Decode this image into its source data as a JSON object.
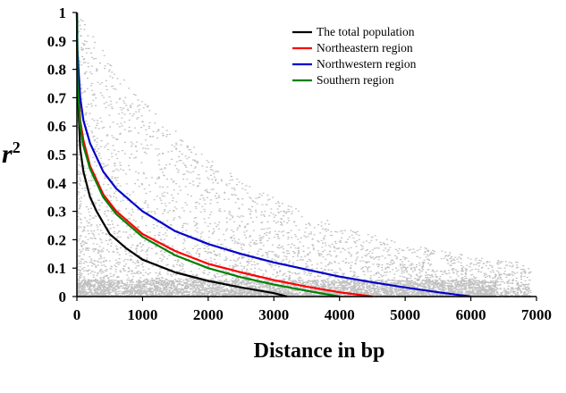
{
  "chart_data": {
    "type": "scatter",
    "title": "",
    "xlabel": "Distance in bp",
    "ylabel": "r",
    "ylabel_superscript": "2",
    "xlim": [
      0,
      7000
    ],
    "ylim": [
      0,
      1
    ],
    "x_ticks": [
      "0",
      "1000",
      "2000",
      "3000",
      "4000",
      "5000",
      "6000",
      "7000"
    ],
    "x_tick_values": [
      0,
      1000,
      2000,
      3000,
      4000,
      5000,
      6000,
      7000
    ],
    "y_ticks": [
      "0",
      "0.1",
      "0.2",
      "0.3",
      "0.4",
      "0.5",
      "0.6",
      "0.7",
      "0.8",
      "0.9",
      "1"
    ],
    "y_tick_values": [
      0,
      0.1,
      0.2,
      0.3,
      0.4,
      0.5,
      0.6,
      0.7,
      0.8,
      0.9,
      1.0
    ],
    "grid": false,
    "legend_position": "top-right",
    "scatter_color": "#c0c0c0",
    "series": [
      {
        "name": "The total population",
        "color": "#000000",
        "points": [
          [
            0,
            1.0
          ],
          [
            10,
            0.74
          ],
          [
            50,
            0.52
          ],
          [
            100,
            0.44
          ],
          [
            200,
            0.35
          ],
          [
            300,
            0.3
          ],
          [
            500,
            0.22
          ],
          [
            750,
            0.17
          ],
          [
            1000,
            0.13
          ],
          [
            1500,
            0.085
          ],
          [
            2000,
            0.055
          ],
          [
            2500,
            0.032
          ],
          [
            3000,
            0.012
          ],
          [
            3200,
            0.0
          ]
        ]
      },
      {
        "name": "Northeastern region",
        "color": "#ff0000",
        "points": [
          [
            0,
            1.0
          ],
          [
            10,
            0.78
          ],
          [
            50,
            0.62
          ],
          [
            100,
            0.55
          ],
          [
            200,
            0.46
          ],
          [
            400,
            0.36
          ],
          [
            600,
            0.3
          ],
          [
            1000,
            0.22
          ],
          [
            1500,
            0.16
          ],
          [
            2000,
            0.115
          ],
          [
            2500,
            0.085
          ],
          [
            3000,
            0.058
          ],
          [
            3500,
            0.035
          ],
          [
            4000,
            0.015
          ],
          [
            4500,
            0.0
          ]
        ]
      },
      {
        "name": "Northwestern region",
        "color": "#0000cc",
        "points": [
          [
            0,
            1.0
          ],
          [
            10,
            0.86
          ],
          [
            50,
            0.7
          ],
          [
            100,
            0.62
          ],
          [
            200,
            0.54
          ],
          [
            400,
            0.44
          ],
          [
            600,
            0.38
          ],
          [
            1000,
            0.3
          ],
          [
            1500,
            0.23
          ],
          [
            2000,
            0.185
          ],
          [
            2500,
            0.15
          ],
          [
            3000,
            0.12
          ],
          [
            3500,
            0.095
          ],
          [
            4000,
            0.07
          ],
          [
            4500,
            0.05
          ],
          [
            5000,
            0.032
          ],
          [
            5500,
            0.015
          ],
          [
            6000,
            0.0
          ]
        ]
      },
      {
        "name": "Southern region",
        "color": "#008000",
        "points": [
          [
            0,
            1.0
          ],
          [
            10,
            0.76
          ],
          [
            50,
            0.6
          ],
          [
            100,
            0.53
          ],
          [
            200,
            0.45
          ],
          [
            400,
            0.35
          ],
          [
            600,
            0.29
          ],
          [
            1000,
            0.21
          ],
          [
            1500,
            0.145
          ],
          [
            2000,
            0.1
          ],
          [
            2500,
            0.068
          ],
          [
            3000,
            0.042
          ],
          [
            3500,
            0.02
          ],
          [
            4000,
            0.0
          ]
        ]
      }
    ]
  }
}
